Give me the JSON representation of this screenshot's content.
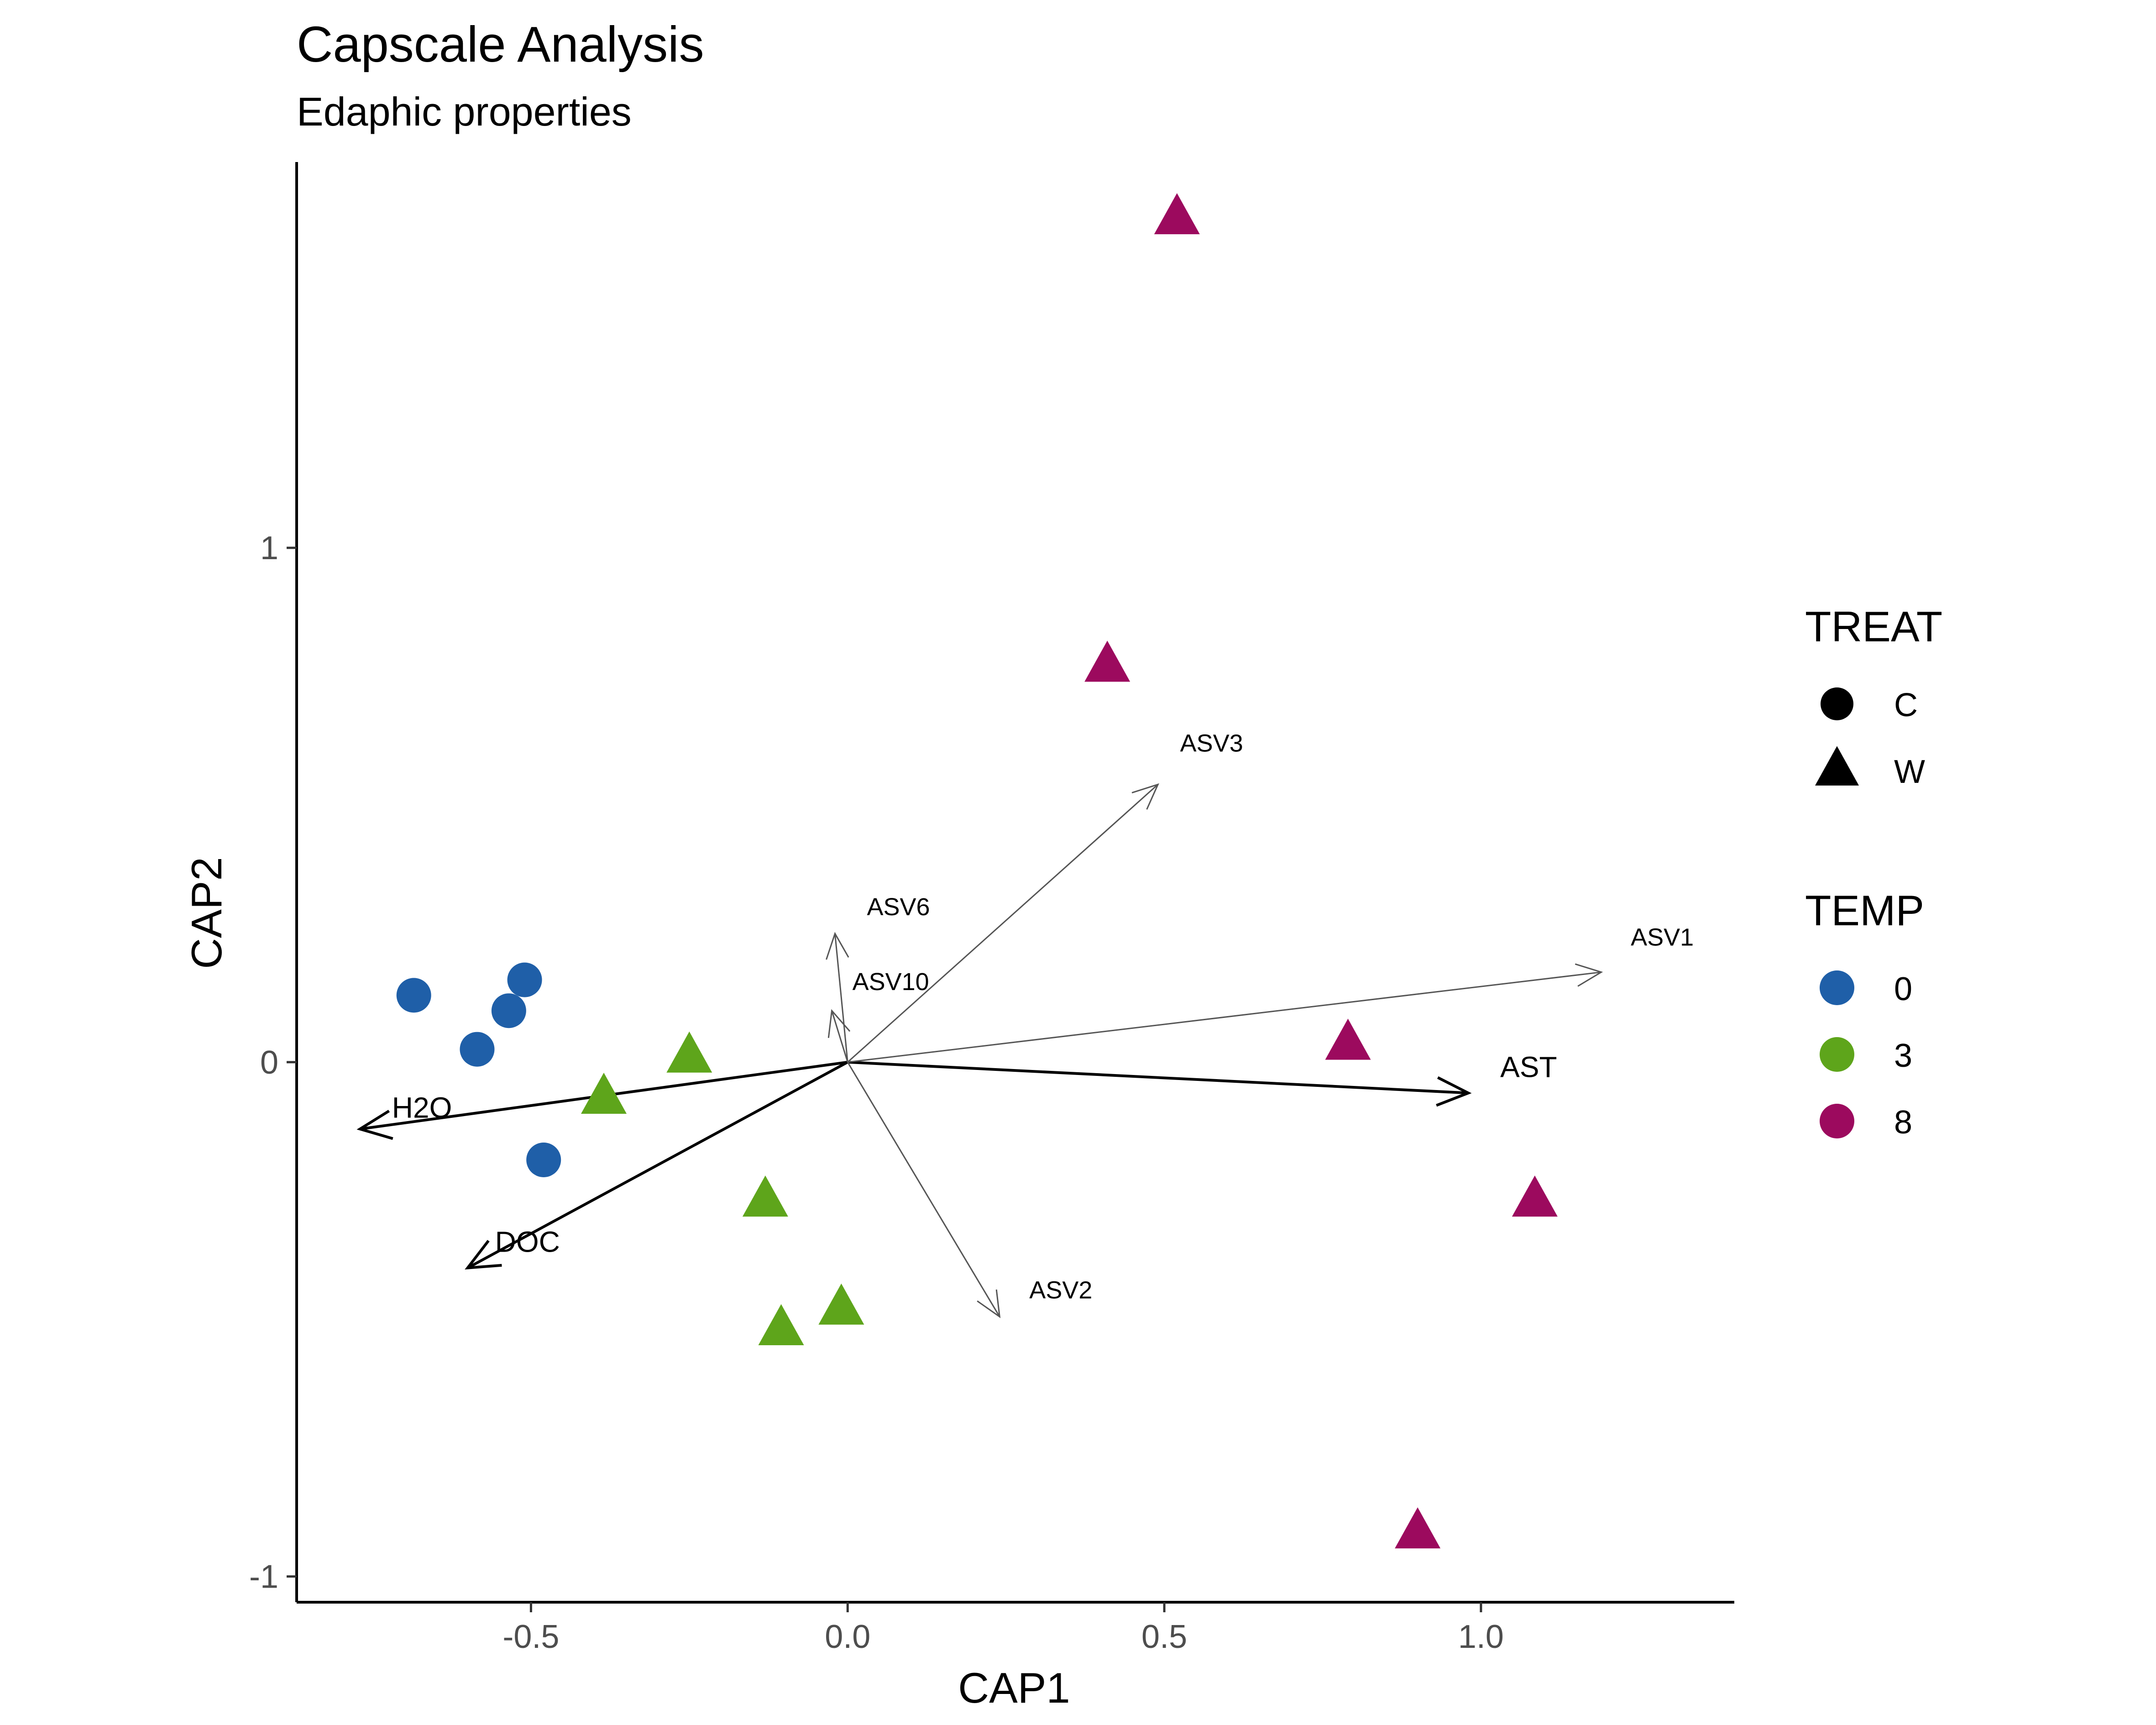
{
  "chart_data": {
    "type": "scatter",
    "title": "Capscale Analysis",
    "subtitle": "Edaphic properties",
    "xlabel": "CAP1",
    "ylabel": "CAP2",
    "xlim": [
      -0.87,
      1.4
    ],
    "ylim": [
      -1.05,
      1.75
    ],
    "x_ticks": [
      -0.5,
      0.0,
      0.5,
      1.0
    ],
    "x_tick_labels": [
      "-0.5",
      "0.0",
      "0.5",
      "1.0"
    ],
    "y_ticks": [
      -1,
      0,
      1
    ],
    "y_tick_labels": [
      "-1",
      "0",
      "1"
    ],
    "grid": false,
    "legend_position": "right",
    "colors": {
      "0": "#1f5fa8",
      "3": "#5ea51b",
      "8": "#9c0a5e"
    },
    "legends": [
      {
        "title": "TREAT",
        "kind": "shape",
        "entries": [
          {
            "label": "C",
            "shape": "circle"
          },
          {
            "label": "W",
            "shape": "triangle"
          }
        ]
      },
      {
        "title": "TEMP",
        "kind": "color",
        "entries": [
          {
            "label": "0",
            "color": "#1f5fa8"
          },
          {
            "label": "3",
            "color": "#5ea51b"
          },
          {
            "label": "8",
            "color": "#9c0a5e"
          }
        ]
      }
    ],
    "points": [
      {
        "x": -0.685,
        "y": 0.13,
        "treat": "C",
        "temp": "0"
      },
      {
        "x": -0.51,
        "y": 0.16,
        "treat": "C",
        "temp": "0"
      },
      {
        "x": -0.535,
        "y": 0.1,
        "treat": "C",
        "temp": "0"
      },
      {
        "x": -0.585,
        "y": 0.025,
        "treat": "C",
        "temp": "0"
      },
      {
        "x": -0.48,
        "y": -0.19,
        "treat": "C",
        "temp": "0"
      },
      {
        "x": -0.25,
        "y": 0.01,
        "treat": "W",
        "temp": "3"
      },
      {
        "x": -0.385,
        "y": -0.07,
        "treat": "W",
        "temp": "3"
      },
      {
        "x": -0.13,
        "y": -0.27,
        "treat": "W",
        "temp": "3"
      },
      {
        "x": -0.01,
        "y": -0.48,
        "treat": "W",
        "temp": "3"
      },
      {
        "x": -0.105,
        "y": -0.52,
        "treat": "W",
        "temp": "3"
      },
      {
        "x": 0.52,
        "y": 1.64,
        "treat": "W",
        "temp": "8"
      },
      {
        "x": 0.41,
        "y": 0.77,
        "treat": "W",
        "temp": "8"
      },
      {
        "x": 0.79,
        "y": 0.035,
        "treat": "W",
        "temp": "8"
      },
      {
        "x": 1.085,
        "y": -0.27,
        "treat": "W",
        "temp": "8"
      },
      {
        "x": 0.9,
        "y": -0.915,
        "treat": "W",
        "temp": "8"
      }
    ],
    "vectors": [
      {
        "name": "AST",
        "x": 0.98,
        "y": -0.06,
        "kind": "major"
      },
      {
        "name": "H2O",
        "x": -0.77,
        "y": -0.13,
        "kind": "major"
      },
      {
        "name": "DOC",
        "x": -0.6,
        "y": -0.4,
        "kind": "major"
      },
      {
        "name": "ASV1",
        "x": 1.19,
        "y": 0.175,
        "kind": "minor"
      },
      {
        "name": "ASV3",
        "x": 0.49,
        "y": 0.54,
        "kind": "minor"
      },
      {
        "name": "ASV6",
        "x": -0.02,
        "y": 0.25,
        "kind": "minor"
      },
      {
        "name": "ASV10",
        "x": -0.025,
        "y": 0.1,
        "kind": "minor"
      },
      {
        "name": "ASV2",
        "x": 0.24,
        "y": -0.495,
        "kind": "minor"
      }
    ]
  }
}
